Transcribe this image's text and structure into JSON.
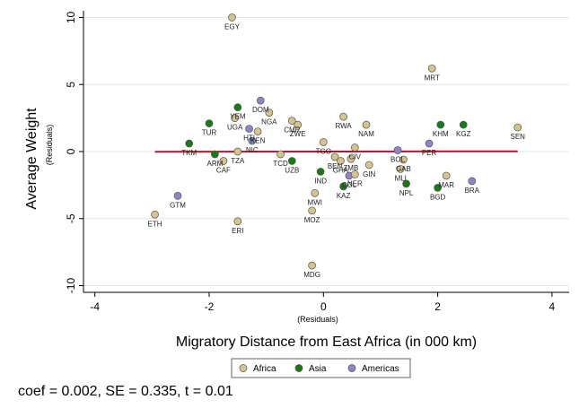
{
  "chart_data": {
    "type": "scatter",
    "xlabel": "Migratory Distance from East Africa (in 000 km)",
    "xsublabel": "(Residuals)",
    "ylabel": "Average Weight",
    "ysublabel": "(Residuals)",
    "xlim": [
      -4.2,
      4.3
    ],
    "ylim": [
      -10.5,
      10.5
    ],
    "xticks": [
      -4,
      -2,
      0,
      2,
      4
    ],
    "yticks": [
      -10,
      -5,
      0,
      5,
      10
    ],
    "grid": "horizontal",
    "fit_line": {
      "x": [
        -2.95,
        3.4
      ],
      "y": [
        -0.02,
        0.02
      ],
      "color": "#c0102a"
    },
    "groups": [
      {
        "name": "Africa",
        "color": "#d6c38e"
      },
      {
        "name": "Asia",
        "color": "#1a7a1a"
      },
      {
        "name": "Americas",
        "color": "#8c86c8"
      }
    ],
    "legend_position": "bottom",
    "points": [
      {
        "label": "EGY",
        "x": -1.6,
        "y": 10.0,
        "group": "Africa"
      },
      {
        "label": "MRT",
        "x": 1.9,
        "y": 6.2,
        "group": "Africa"
      },
      {
        "label": "DOM",
        "x": -1.1,
        "y": 3.8,
        "group": "Americas"
      },
      {
        "label": "YEM",
        "x": -1.5,
        "y": 3.3,
        "group": "Asia"
      },
      {
        "label": "NGA",
        "x": -0.95,
        "y": 2.9,
        "group": "Africa"
      },
      {
        "label": "UGA",
        "x": -1.55,
        "y": 2.5,
        "group": "Africa"
      },
      {
        "label": "CMR",
        "x": -0.55,
        "y": 2.3,
        "group": "Africa"
      },
      {
        "label": "ZWE",
        "x": -0.45,
        "y": 2.0,
        "group": "Africa"
      },
      {
        "label": "RWA",
        "x": 0.35,
        "y": 2.6,
        "group": "Africa"
      },
      {
        "label": "NAM",
        "x": 0.75,
        "y": 2.0,
        "group": "Africa"
      },
      {
        "label": "TUR",
        "x": -2.0,
        "y": 2.1,
        "group": "Asia"
      },
      {
        "label": "HTI",
        "x": -1.3,
        "y": 1.7,
        "group": "Americas"
      },
      {
        "label": "KEN",
        "x": -1.15,
        "y": 1.5,
        "group": "Africa"
      },
      {
        "label": "KHM",
        "x": 2.05,
        "y": 2.0,
        "group": "Asia"
      },
      {
        "label": "KGZ",
        "x": 2.45,
        "y": 2.0,
        "group": "Asia"
      },
      {
        "label": "SEN",
        "x": 3.4,
        "y": 1.8,
        "group": "Africa"
      },
      {
        "label": "NIC",
        "x": -1.25,
        "y": 0.8,
        "group": "Americas"
      },
      {
        "label": "TKM",
        "x": -2.35,
        "y": 0.6,
        "group": "Asia"
      },
      {
        "label": "TGO",
        "x": 0.0,
        "y": 0.7,
        "group": "Africa"
      },
      {
        "label": "PER",
        "x": 1.85,
        "y": 0.6,
        "group": "Americas"
      },
      {
        "label": "BOL",
        "x": 1.3,
        "y": 0.1,
        "group": "Americas"
      },
      {
        "label": "ARM",
        "x": -1.9,
        "y": -0.2,
        "group": "Asia"
      },
      {
        "label": "TZA",
        "x": -1.5,
        "y": 0.0,
        "group": "Africa"
      },
      {
        "label": "CAF",
        "x": -1.75,
        "y": -0.7,
        "group": "Africa"
      },
      {
        "label": "TCD",
        "x": -0.75,
        "y": -0.2,
        "group": "Africa"
      },
      {
        "label": "UZB",
        "x": -0.55,
        "y": -0.7,
        "group": "Asia"
      },
      {
        "label": "BEN",
        "x": 0.2,
        "y": -0.4,
        "group": "Africa"
      },
      {
        "label": "GHA",
        "x": 0.3,
        "y": -0.7,
        "group": "Africa"
      },
      {
        "label": "CIV",
        "x": 0.55,
        "y": 0.3,
        "group": "Africa"
      },
      {
        "label": "ZMB",
        "x": 0.48,
        "y": -0.55,
        "group": "Africa"
      },
      {
        "label": "GAB",
        "x": 1.4,
        "y": -0.6,
        "group": "Africa"
      },
      {
        "label": "GIN",
        "x": 0.8,
        "y": -1.0,
        "group": "Africa"
      },
      {
        "label": "MLI",
        "x": 1.35,
        "y": -1.3,
        "group": "Africa"
      },
      {
        "label": "IND",
        "x": -0.05,
        "y": -1.5,
        "group": "Asia"
      },
      {
        "label": "COL",
        "x": 0.45,
        "y": -1.8,
        "group": "Americas"
      },
      {
        "label": "NER",
        "x": 0.55,
        "y": -1.7,
        "group": "Africa"
      },
      {
        "label": "KAZ",
        "x": 0.35,
        "y": -2.6,
        "group": "Asia"
      },
      {
        "label": "NPL",
        "x": 1.45,
        "y": -2.4,
        "group": "Asia"
      },
      {
        "label": "MAR",
        "x": 2.15,
        "y": -1.8,
        "group": "Africa"
      },
      {
        "label": "BGD",
        "x": 2.0,
        "y": -2.7,
        "group": "Asia"
      },
      {
        "label": "BRA",
        "x": 2.6,
        "y": -2.2,
        "group": "Americas"
      },
      {
        "label": "GTM",
        "x": -2.55,
        "y": -3.3,
        "group": "Americas"
      },
      {
        "label": "ETH",
        "x": -2.95,
        "y": -4.7,
        "group": "Africa"
      },
      {
        "label": "ERI",
        "x": -1.5,
        "y": -5.2,
        "group": "Africa"
      },
      {
        "label": "MWI",
        "x": -0.15,
        "y": -3.1,
        "group": "Africa"
      },
      {
        "label": "MOZ",
        "x": -0.2,
        "y": -4.4,
        "group": "Africa"
      },
      {
        "label": "MDG",
        "x": -0.2,
        "y": -8.5,
        "group": "Africa"
      }
    ]
  },
  "note": "coef = 0.002, SE = 0.335, t = 0.01"
}
